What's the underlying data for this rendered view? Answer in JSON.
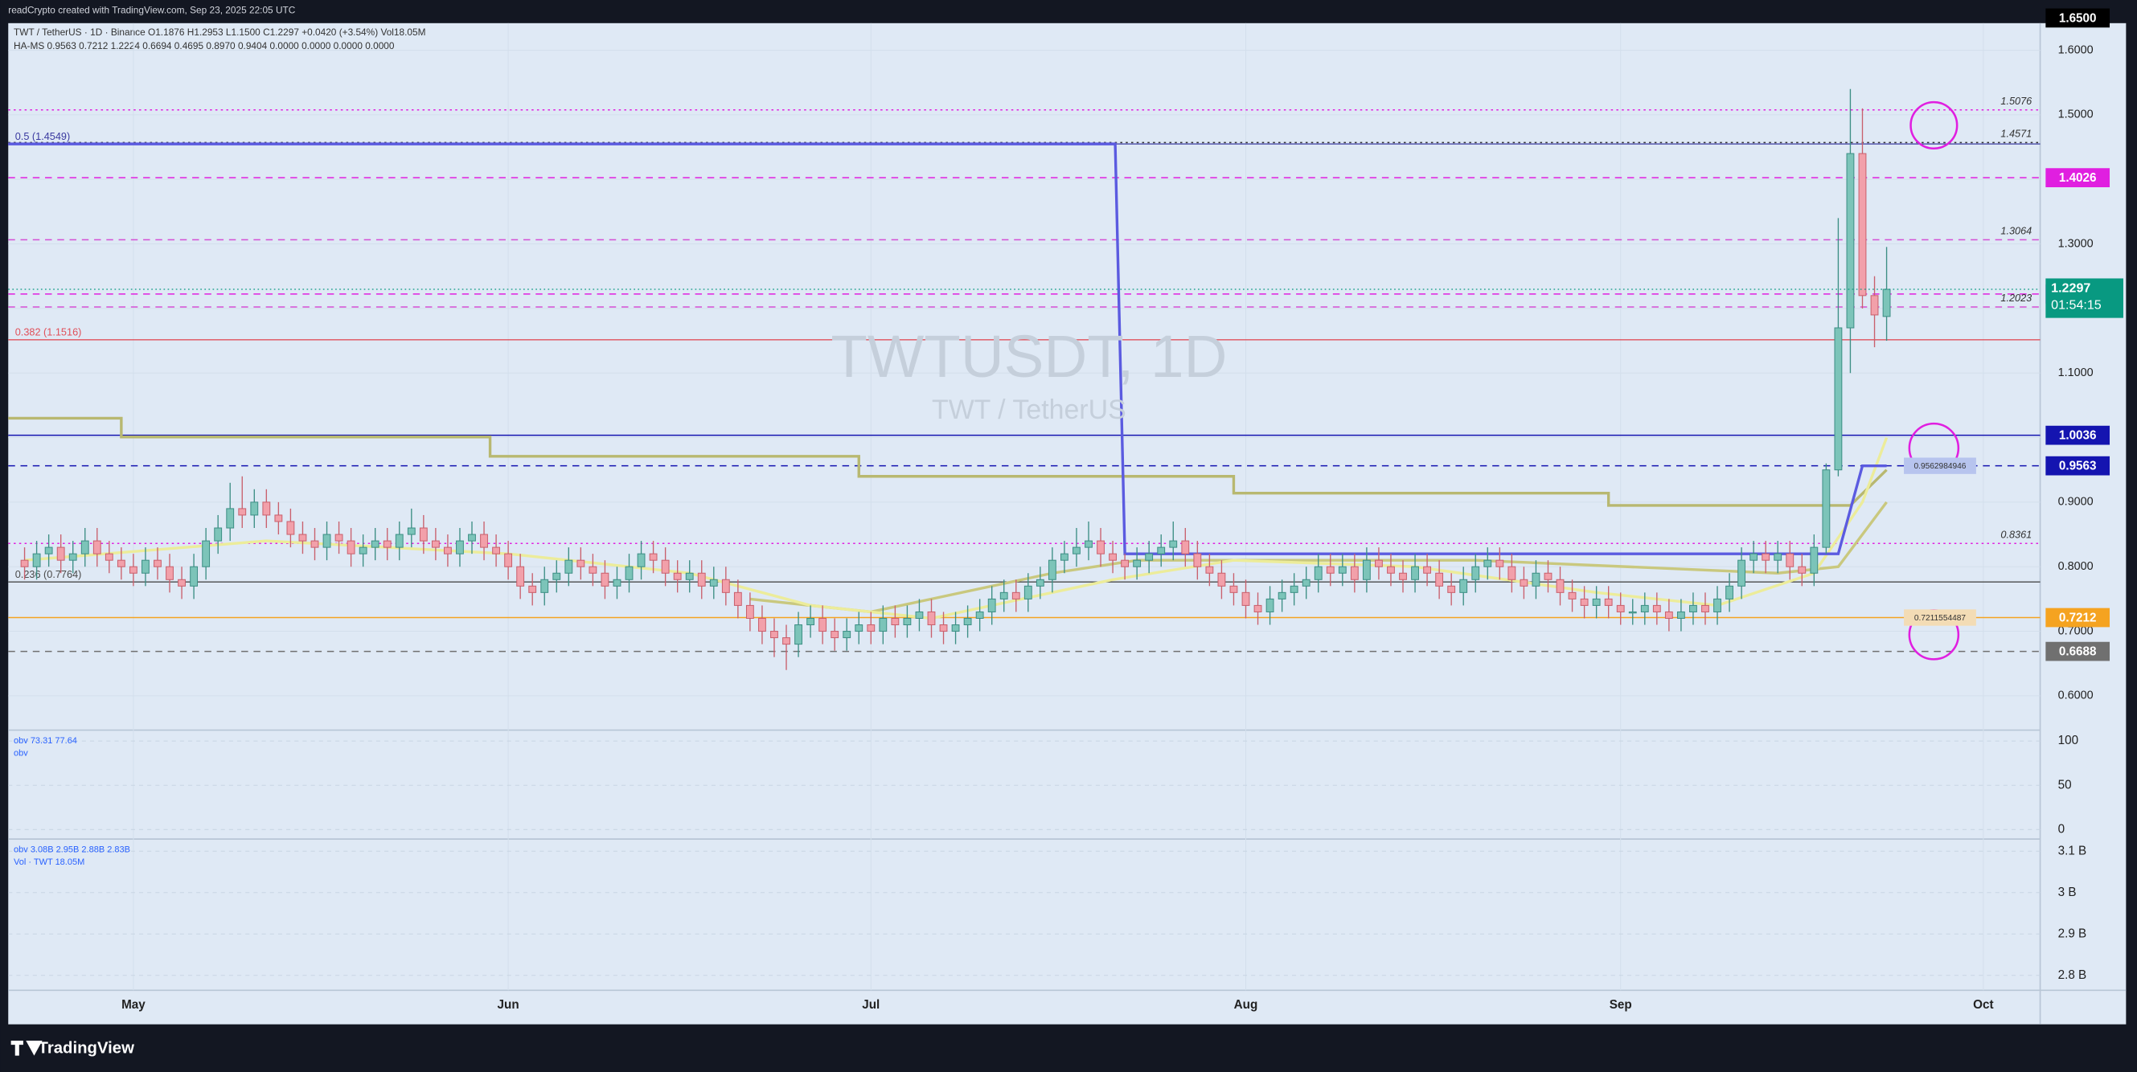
{
  "header": {
    "credit": "readCrypto created with TradingView.com, Sep 23, 2025 22:05 UTC",
    "legend": "TWT / TetherUS · 1D · Binance  O1.1876 H1.2953 L1.1500 C1.2297 +0.0420 (+3.54%) Vol18.05M",
    "ha_ms": "HA-MS  0.9563  0.7212  1.2224  0.6694  0.4695  0.8970  0.9404  0.0000  0.0000  0.0000  0.0000"
  },
  "footer": {
    "brand": "TradingView"
  },
  "chart_data": {
    "type": "candlestick",
    "watermark": "TWTUSDT, 1D",
    "watermark_sub": "TWT / TetherUS",
    "up_color": "#7cc4b9",
    "down_color": "#f2a0aa",
    "xlim": [
      -1.35,
      166.7
    ],
    "xticks": [
      {
        "value": 9,
        "label": "May"
      },
      {
        "value": 40,
        "label": "Jun"
      },
      {
        "value": 70,
        "label": "Jul"
      },
      {
        "value": 101,
        "label": "Aug"
      },
      {
        "value": 132,
        "label": "Sep"
      },
      {
        "value": 162,
        "label": "Oct"
      }
    ],
    "ylim": [
      0.549,
      1.642
    ],
    "yticks": [
      {
        "value": 0.6,
        "label": "0.6000"
      },
      {
        "value": 0.7,
        "label": "0.7000"
      },
      {
        "value": 0.8,
        "label": "0.8000"
      },
      {
        "value": 0.9,
        "label": "0.9000"
      },
      {
        "value": 1.0,
        "label": "1.0000"
      },
      {
        "value": 1.1,
        "label": "1.1000"
      },
      {
        "value": 1.2,
        "label": "1.2000"
      },
      {
        "value": 1.3,
        "label": "1.3000"
      },
      {
        "value": 1.4,
        "label": "1.4000"
      },
      {
        "value": 1.5,
        "label": "1.5000"
      },
      {
        "value": 1.6,
        "label": "1.6000"
      }
    ],
    "grid": true,
    "top_label": {
      "value": 1.65,
      "label": "1.6500"
    },
    "countdown": "01:54:15",
    "last_color": "#089981",
    "open": [
      0.81,
      0.8,
      0.82,
      0.83,
      0.81,
      0.82,
      0.84,
      0.82,
      0.81,
      0.8,
      0.79,
      0.81,
      0.8,
      0.78,
      0.77,
      0.8,
      0.84,
      0.86,
      0.89,
      0.88,
      0.9,
      0.88,
      0.87,
      0.85,
      0.84,
      0.83,
      0.85,
      0.84,
      0.82,
      0.83,
      0.84,
      0.83,
      0.85,
      0.86,
      0.84,
      0.83,
      0.82,
      0.84,
      0.85,
      0.83,
      0.82,
      0.8,
      0.77,
      0.76,
      0.78,
      0.79,
      0.81,
      0.8,
      0.79,
      0.77,
      0.78,
      0.8,
      0.82,
      0.81,
      0.79,
      0.78,
      0.79,
      0.77,
      0.78,
      0.76,
      0.74,
      0.72,
      0.7,
      0.69,
      0.68,
      0.71,
      0.72,
      0.7,
      0.69,
      0.7,
      0.71,
      0.7,
      0.72,
      0.71,
      0.72,
      0.73,
      0.71,
      0.7,
      0.71,
      0.72,
      0.73,
      0.75,
      0.76,
      0.75,
      0.77,
      0.78,
      0.81,
      0.82,
      0.83,
      0.84,
      0.82,
      0.81,
      0.8,
      0.81,
      0.82,
      0.83,
      0.84,
      0.82,
      0.8,
      0.79,
      0.77,
      0.76,
      0.74,
      0.73,
      0.75,
      0.76,
      0.77,
      0.78,
      0.8,
      0.79,
      0.8,
      0.78,
      0.81,
      0.8,
      0.79,
      0.78,
      0.8,
      0.79,
      0.77,
      0.76,
      0.78,
      0.8,
      0.81,
      0.8,
      0.78,
      0.77,
      0.79,
      0.78,
      0.76,
      0.75,
      0.74,
      0.75,
      0.74,
      0.73,
      0.73,
      0.74,
      0.73,
      0.72,
      0.73,
      0.74,
      0.73,
      0.75,
      0.77,
      0.81,
      0.82,
      0.81,
      0.82,
      0.8,
      0.79,
      0.83,
      0.95,
      1.17,
      1.44,
      1.22,
      1.1876
    ],
    "high": [
      0.83,
      0.84,
      0.85,
      0.85,
      0.84,
      0.86,
      0.86,
      0.84,
      0.83,
      0.82,
      0.83,
      0.83,
      0.82,
      0.8,
      0.82,
      0.86,
      0.88,
      0.93,
      0.94,
      0.92,
      0.92,
      0.9,
      0.89,
      0.87,
      0.86,
      0.87,
      0.87,
      0.86,
      0.85,
      0.86,
      0.86,
      0.87,
      0.89,
      0.88,
      0.86,
      0.85,
      0.86,
      0.87,
      0.87,
      0.85,
      0.84,
      0.82,
      0.79,
      0.8,
      0.81,
      0.83,
      0.83,
      0.82,
      0.81,
      0.8,
      0.82,
      0.84,
      0.84,
      0.83,
      0.81,
      0.81,
      0.81,
      0.8,
      0.8,
      0.78,
      0.76,
      0.74,
      0.72,
      0.71,
      0.73,
      0.74,
      0.74,
      0.72,
      0.72,
      0.73,
      0.73,
      0.74,
      0.74,
      0.74,
      0.75,
      0.75,
      0.73,
      0.73,
      0.74,
      0.75,
      0.77,
      0.78,
      0.78,
      0.79,
      0.8,
      0.83,
      0.84,
      0.86,
      0.87,
      0.86,
      0.84,
      0.82,
      0.83,
      0.84,
      0.85,
      0.87,
      0.86,
      0.84,
      0.82,
      0.81,
      0.79,
      0.78,
      0.76,
      0.77,
      0.78,
      0.79,
      0.8,
      0.82,
      0.82,
      0.82,
      0.82,
      0.83,
      0.83,
      0.82,
      0.81,
      0.82,
      0.82,
      0.81,
      0.79,
      0.8,
      0.82,
      0.83,
      0.83,
      0.82,
      0.8,
      0.81,
      0.81,
      0.8,
      0.78,
      0.77,
      0.77,
      0.77,
      0.76,
      0.75,
      0.76,
      0.76,
      0.75,
      0.75,
      0.76,
      0.76,
      0.77,
      0.79,
      0.83,
      0.84,
      0.84,
      0.84,
      0.84,
      0.82,
      0.85,
      0.96,
      1.34,
      1.54,
      1.51,
      1.25,
      1.2953
    ],
    "low": [
      0.78,
      0.78,
      0.8,
      0.79,
      0.79,
      0.8,
      0.8,
      0.79,
      0.78,
      0.77,
      0.77,
      0.78,
      0.76,
      0.75,
      0.75,
      0.78,
      0.82,
      0.84,
      0.86,
      0.86,
      0.86,
      0.85,
      0.83,
      0.82,
      0.81,
      0.81,
      0.82,
      0.8,
      0.8,
      0.81,
      0.81,
      0.81,
      0.83,
      0.82,
      0.81,
      0.8,
      0.8,
      0.82,
      0.81,
      0.8,
      0.78,
      0.75,
      0.74,
      0.74,
      0.76,
      0.77,
      0.78,
      0.77,
      0.75,
      0.75,
      0.76,
      0.78,
      0.79,
      0.77,
      0.76,
      0.76,
      0.75,
      0.75,
      0.74,
      0.72,
      0.7,
      0.68,
      0.66,
      0.64,
      0.66,
      0.69,
      0.68,
      0.67,
      0.67,
      0.68,
      0.68,
      0.68,
      0.69,
      0.69,
      0.7,
      0.69,
      0.68,
      0.68,
      0.69,
      0.7,
      0.71,
      0.73,
      0.73,
      0.73,
      0.75,
      0.76,
      0.79,
      0.8,
      0.81,
      0.8,
      0.79,
      0.78,
      0.78,
      0.79,
      0.8,
      0.81,
      0.8,
      0.78,
      0.77,
      0.75,
      0.74,
      0.72,
      0.71,
      0.71,
      0.73,
      0.74,
      0.75,
      0.76,
      0.77,
      0.77,
      0.76,
      0.76,
      0.78,
      0.77,
      0.76,
      0.76,
      0.77,
      0.75,
      0.74,
      0.74,
      0.76,
      0.78,
      0.78,
      0.76,
      0.75,
      0.75,
      0.76,
      0.74,
      0.73,
      0.72,
      0.72,
      0.72,
      0.71,
      0.71,
      0.71,
      0.71,
      0.7,
      0.7,
      0.71,
      0.71,
      0.71,
      0.73,
      0.75,
      0.79,
      0.79,
      0.79,
      0.78,
      0.77,
      0.77,
      0.82,
      0.94,
      1.1,
      1.2,
      1.14,
      1.15
    ],
    "close": [
      0.8,
      0.82,
      0.83,
      0.81,
      0.82,
      0.84,
      0.82,
      0.81,
      0.8,
      0.79,
      0.81,
      0.8,
      0.78,
      0.77,
      0.8,
      0.84,
      0.86,
      0.89,
      0.88,
      0.9,
      0.88,
      0.87,
      0.85,
      0.84,
      0.83,
      0.85,
      0.84,
      0.82,
      0.83,
      0.84,
      0.83,
      0.85,
      0.86,
      0.84,
      0.83,
      0.82,
      0.84,
      0.85,
      0.83,
      0.82,
      0.8,
      0.77,
      0.76,
      0.78,
      0.79,
      0.81,
      0.8,
      0.79,
      0.77,
      0.78,
      0.8,
      0.82,
      0.81,
      0.79,
      0.78,
      0.79,
      0.77,
      0.78,
      0.76,
      0.74,
      0.72,
      0.7,
      0.69,
      0.68,
      0.71,
      0.72,
      0.7,
      0.69,
      0.7,
      0.71,
      0.7,
      0.72,
      0.71,
      0.72,
      0.73,
      0.71,
      0.7,
      0.71,
      0.72,
      0.73,
      0.75,
      0.76,
      0.75,
      0.77,
      0.78,
      0.81,
      0.82,
      0.83,
      0.84,
      0.82,
      0.81,
      0.8,
      0.81,
      0.82,
      0.83,
      0.84,
      0.82,
      0.8,
      0.79,
      0.77,
      0.76,
      0.74,
      0.73,
      0.75,
      0.76,
      0.77,
      0.78,
      0.8,
      0.79,
      0.8,
      0.78,
      0.81,
      0.8,
      0.79,
      0.78,
      0.8,
      0.79,
      0.77,
      0.76,
      0.78,
      0.8,
      0.81,
      0.8,
      0.78,
      0.77,
      0.79,
      0.78,
      0.76,
      0.75,
      0.74,
      0.75,
      0.74,
      0.73,
      0.73,
      0.74,
      0.73,
      0.72,
      0.73,
      0.74,
      0.73,
      0.75,
      0.77,
      0.81,
      0.82,
      0.81,
      0.82,
      0.8,
      0.79,
      0.83,
      0.95,
      1.17,
      1.44,
      1.22,
      1.19,
      1.2297
    ],
    "levels": [
      {
        "value": 1.5076,
        "color": "#e01fe0",
        "style": "dotted",
        "text_at": "plot"
      },
      {
        "value": 1.4571,
        "color": "#333333",
        "style": "dotted",
        "text_at": "plot"
      },
      {
        "value": 1.4026,
        "color": "#e01fe0",
        "style": "dashed",
        "text_at": "axis"
      },
      {
        "value": 1.3064,
        "color": "#d54fd5",
        "style": "dashed",
        "text_at": "plot"
      },
      {
        "value": 1.2224,
        "color": "#e01fe0",
        "style": "dashed",
        "text_at": "axis"
      },
      {
        "value": 1.2023,
        "color": "#d54fd5",
        "style": "dashed",
        "text_at": "plot"
      },
      {
        "value": 1.0036,
        "color": "#1414b0",
        "style": "solid",
        "text_at": "axis"
      },
      {
        "value": 0.9563,
        "color": "#1414b0",
        "style": "dashed",
        "text_at": "axis",
        "tag": "0.9562984946",
        "tag_color": "#b7c4ee"
      },
      {
        "value": 0.8361,
        "color": "#e01fe0",
        "style": "dotted",
        "text_at": "plot"
      },
      {
        "value": 0.7212,
        "color": "#f5a320",
        "style": "solid",
        "text_at": "axis",
        "tag": "0.7211554487",
        "tag_color": "#f3dcb5"
      },
      {
        "value": 0.6688,
        "color": "#707070",
        "style": "dashed",
        "text_at": "axis"
      }
    ],
    "fibs": [
      {
        "value": 1.4549,
        "label": "0.5 (1.4549)",
        "color": "#3a3aa0"
      },
      {
        "value": 1.1516,
        "label": "0.382 (1.1516)",
        "color": "#e0505a"
      },
      {
        "value": 0.7764,
        "label": "0.236 (0.7764)",
        "color": "#4a4a4a"
      }
    ],
    "overlays": [
      {
        "color": "#b8b870",
        "x": [
          -1.35,
          8,
          8,
          38.5,
          38.5,
          69,
          69,
          100,
          100,
          131,
          131,
          151,
          154
        ],
        "values": [
          1.03,
          1.03,
          1.001,
          1.001,
          0.971,
          0.971,
          0.94,
          0.94,
          0.914,
          0.914,
          0.895,
          0.895,
          0.95
        ]
      },
      {
        "color": "#c9c87e",
        "x": [
          60,
          70,
          85,
          92,
          120,
          145,
          150,
          154
        ],
        "values": [
          0.75,
          0.73,
          0.79,
          0.81,
          0.81,
          0.79,
          0.8,
          0.9
        ]
      },
      {
        "color": "#ecec9a",
        "x": [
          0,
          20,
          40,
          55,
          65,
          75,
          90,
          100,
          115,
          130,
          140,
          148,
          152,
          154
        ],
        "values": [
          0.81,
          0.84,
          0.82,
          0.79,
          0.74,
          0.72,
          0.78,
          0.81,
          0.8,
          0.76,
          0.74,
          0.79,
          0.9,
          1.0
        ]
      },
      {
        "color": "#5b5be0",
        "x": [
          -1.35,
          90.2,
          91,
          150,
          152,
          154
        ],
        "values": [
          1.4549,
          1.4549,
          0.82,
          0.82,
          0.9563,
          0.9563
        ]
      }
    ],
    "osc": {
      "legend": [
        "obv  73.31  77.64",
        "obv"
      ],
      "ylim": [
        -9.2,
        110.8
      ],
      "yticks": [
        0,
        50,
        100
      ]
    },
    "vol": {
      "legend": [
        "obv  3.08B  2.95B  2.88B  2.83B",
        "Vol · TWT  18.05M"
      ],
      "ylim": [
        2764000000,
        3126000000
      ],
      "yticks": [
        {
          "value": 2800000000,
          "label": "2.8 B"
        },
        {
          "value": 2900000000,
          "label": "2.9 B"
        },
        {
          "value": 3000000000,
          "label": "3 B"
        },
        {
          "value": 3100000000,
          "label": "3.1 B"
        }
      ]
    }
  }
}
